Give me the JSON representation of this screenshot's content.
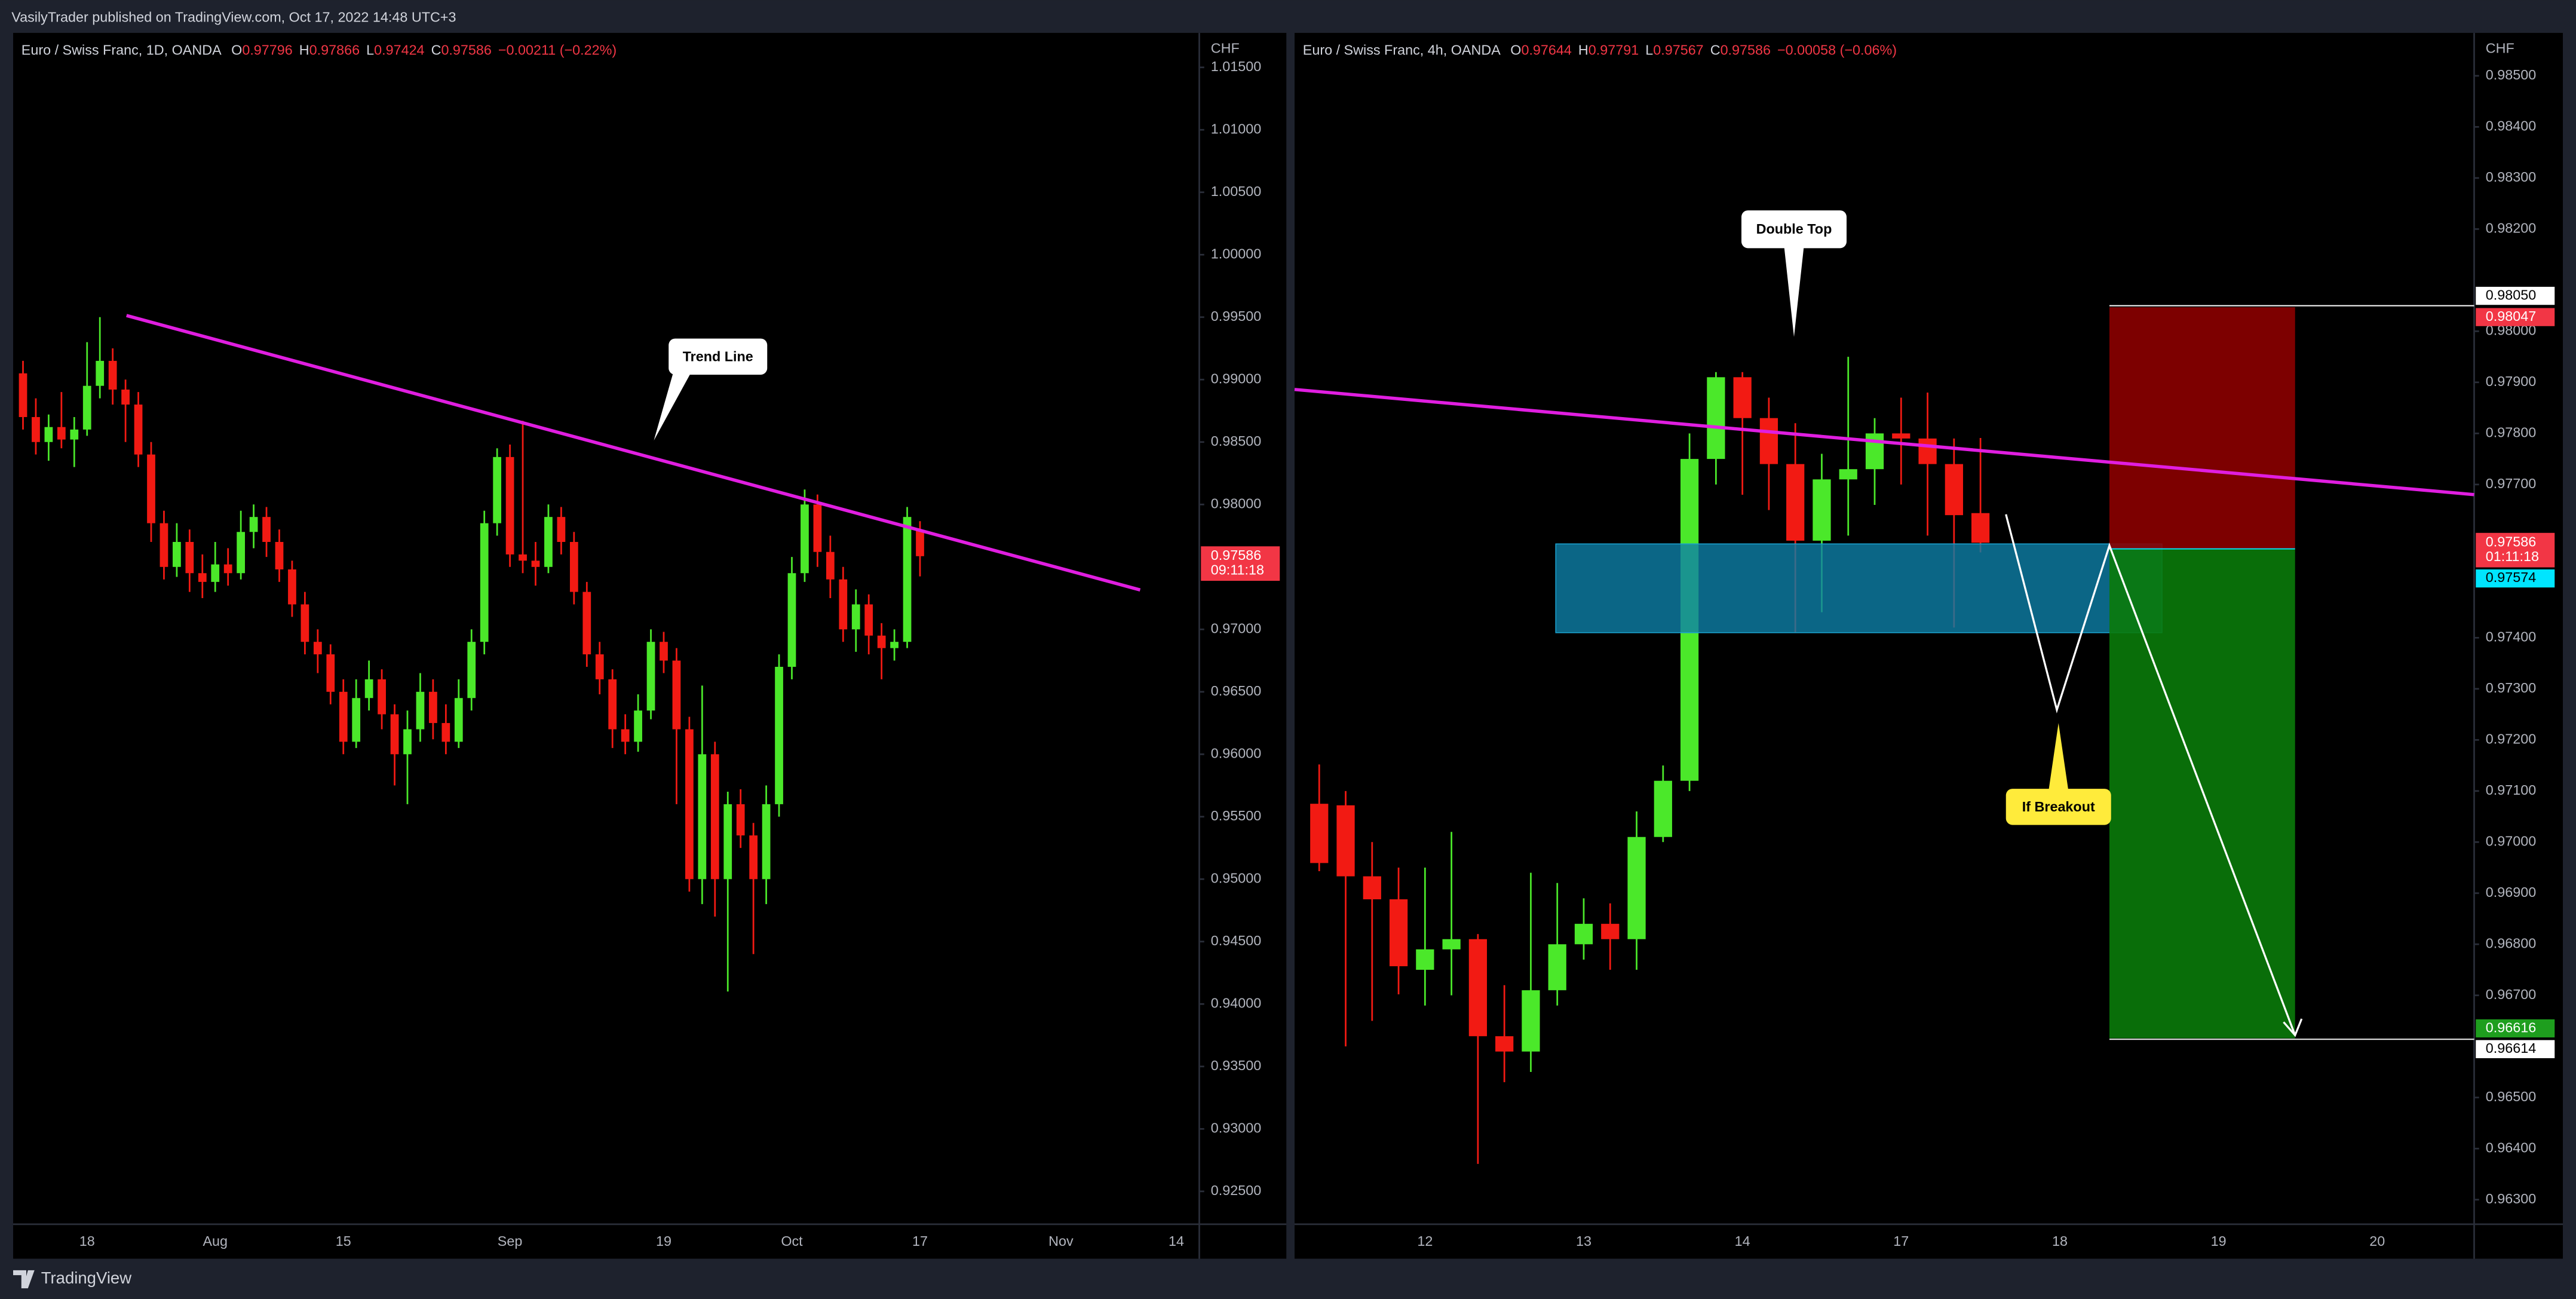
{
  "header": {
    "text": "VasilyTrader published on TradingView.com, Oct 17, 2022 14:48 UTC+3"
  },
  "footer": {
    "brand": "TradingView"
  },
  "chart_data": [
    {
      "type": "candlestick",
      "title": "Euro / Swiss Franc, 1D, OANDA",
      "ohlc_letters": [
        "O",
        "H",
        "L",
        "C"
      ],
      "change": "−0.00211 (−0.22%)",
      "currency": "CHF",
      "countdown": "09:11:18",
      "up_color": "#4be82a",
      "down_color": "#f21a13",
      "annotations": [
        {
          "text": "Trend Line"
        }
      ],
      "categories": [
        null,
        null,
        null,
        null,
        null,
        "18",
        null,
        null,
        null,
        null,
        null,
        null,
        null,
        null,
        null,
        "Aug",
        null,
        null,
        null,
        null,
        null,
        null,
        null,
        null,
        null,
        "15",
        null,
        null,
        null,
        null,
        null,
        null,
        null,
        null,
        null,
        null,
        null,
        null,
        "Sep",
        null,
        null,
        null,
        null,
        null,
        null,
        null,
        null,
        null,
        null,
        null,
        "19",
        null,
        null,
        null,
        null,
        null,
        null,
        null,
        null,
        null,
        "Oct",
        null,
        null,
        null,
        null,
        null,
        null,
        null,
        null,
        null,
        "17",
        null,
        null,
        null,
        null,
        null,
        null,
        null,
        null,
        null,
        null,
        "Nov",
        null,
        null,
        null,
        null,
        null,
        null,
        null,
        null,
        "14",
        null
      ],
      "open": [
        0.9905,
        0.987,
        0.985,
        0.9862,
        0.9852,
        0.986,
        0.9895,
        0.9915,
        0.9892,
        0.988,
        0.984,
        0.9785,
        0.975,
        0.977,
        0.9745,
        0.9738,
        0.9752,
        0.9745,
        0.9778,
        0.979,
        0.977,
        0.9748,
        0.972,
        0.969,
        0.968,
        0.965,
        0.961,
        0.9645,
        0.966,
        0.9632,
        0.96,
        0.962,
        0.965,
        0.9625,
        0.961,
        0.9645,
        0.969,
        0.9785,
        0.9838,
        0.976,
        0.9755,
        0.975,
        0.979,
        0.977,
        0.973,
        0.968,
        0.966,
        0.962,
        0.961,
        0.9635,
        0.969,
        0.9675,
        0.962,
        0.95,
        0.96,
        0.95,
        0.956,
        0.9535,
        0.95,
        0.956,
        0.967,
        0.9745,
        0.98,
        0.9762,
        0.974,
        0.97,
        0.972,
        0.9695,
        0.9685,
        0.969,
        0.97796,
        null,
        null,
        null,
        null,
        null,
        null,
        null,
        null,
        null,
        null,
        null,
        null,
        null,
        null,
        null,
        null,
        null,
        null,
        null,
        null,
        null
      ],
      "high": [
        0.9915,
        0.9885,
        0.9872,
        0.989,
        0.987,
        0.993,
        0.995,
        0.9925,
        0.99,
        0.989,
        0.985,
        0.9795,
        0.9785,
        0.978,
        0.976,
        0.977,
        0.9765,
        0.9795,
        0.98,
        0.9798,
        0.978,
        0.9755,
        0.973,
        0.97,
        0.9688,
        0.966,
        0.966,
        0.9675,
        0.9668,
        0.964,
        0.9635,
        0.9665,
        0.966,
        0.964,
        0.966,
        0.97,
        0.9795,
        0.9845,
        0.9848,
        0.9867,
        0.977,
        0.98,
        0.9798,
        0.9778,
        0.9738,
        0.969,
        0.9668,
        0.9632,
        0.9648,
        0.97,
        0.9698,
        0.9685,
        0.963,
        0.9655,
        0.961,
        0.957,
        0.9572,
        0.9545,
        0.9575,
        0.968,
        0.9758,
        0.9812,
        0.9808,
        0.9775,
        0.975,
        0.9732,
        0.9728,
        0.9705,
        0.97,
        0.9798,
        0.97866,
        null,
        null,
        null,
        null,
        null,
        null,
        null,
        null,
        null,
        null,
        null,
        null,
        null,
        null,
        null,
        null,
        null,
        null,
        null,
        null,
        null
      ],
      "low": [
        0.986,
        0.984,
        0.9835,
        0.9845,
        0.983,
        0.9855,
        0.9885,
        0.988,
        0.985,
        0.983,
        0.977,
        0.974,
        0.9742,
        0.973,
        0.9725,
        0.973,
        0.9735,
        0.974,
        0.9765,
        0.9758,
        0.9738,
        0.971,
        0.968,
        0.9665,
        0.964,
        0.96,
        0.9605,
        0.9635,
        0.962,
        0.9575,
        0.956,
        0.961,
        0.9612,
        0.96,
        0.9605,
        0.9635,
        0.968,
        0.9775,
        0.975,
        0.9745,
        0.9735,
        0.9745,
        0.976,
        0.972,
        0.967,
        0.9648,
        0.9605,
        0.96,
        0.9602,
        0.9628,
        0.9665,
        0.956,
        0.949,
        0.948,
        0.947,
        0.941,
        0.9525,
        0.944,
        0.948,
        0.955,
        0.966,
        0.9738,
        0.975,
        0.9725,
        0.969,
        0.9682,
        0.968,
        0.966,
        0.9675,
        0.9685,
        0.97424,
        null,
        null,
        null,
        null,
        null,
        null,
        null,
        null,
        null,
        null,
        null,
        null,
        null,
        null,
        null,
        null,
        null,
        null,
        null,
        null,
        null
      ],
      "close": [
        0.987,
        0.985,
        0.9862,
        0.9852,
        0.986,
        0.9895,
        0.9915,
        0.9892,
        0.988,
        0.984,
        0.9785,
        0.975,
        0.977,
        0.9745,
        0.9738,
        0.9752,
        0.9745,
        0.9778,
        0.979,
        0.977,
        0.9748,
        0.972,
        0.969,
        0.968,
        0.965,
        0.961,
        0.9645,
        0.966,
        0.9632,
        0.96,
        0.962,
        0.965,
        0.9625,
        0.961,
        0.9645,
        0.969,
        0.9785,
        0.9838,
        0.976,
        0.9755,
        0.975,
        0.979,
        0.977,
        0.973,
        0.968,
        0.966,
        0.962,
        0.961,
        0.9635,
        0.969,
        0.9675,
        0.962,
        0.95,
        0.96,
        0.95,
        0.956,
        0.9535,
        0.95,
        0.956,
        0.967,
        0.9745,
        0.98,
        0.9762,
        0.974,
        0.97,
        0.972,
        0.9695,
        0.9685,
        0.969,
        0.979,
        0.97586,
        null,
        null,
        null,
        null,
        null,
        null,
        null,
        null,
        null,
        null,
        null,
        null,
        null,
        null,
        null,
        null,
        null,
        null,
        null,
        null,
        null
      ],
      "ylim": [
        0.92237,
        1.01776
      ],
      "yticks": [
        {
          "value": 1.015,
          "label": "1.01500"
        },
        {
          "value": 1.01,
          "label": "1.01000"
        },
        {
          "value": 1.005,
          "label": "1.00500"
        },
        {
          "value": 1,
          "label": "1.00000"
        },
        {
          "value": 0.995,
          "label": "0.99500"
        },
        {
          "value": 0.99,
          "label": "0.99000"
        },
        {
          "value": 0.985,
          "label": "0.98500"
        },
        {
          "value": 0.98,
          "label": "0.98000"
        },
        {
          "value": 0.97,
          "label": "0.97000"
        },
        {
          "value": 0.965,
          "label": "0.96500"
        },
        {
          "value": 0.96,
          "label": "0.96000"
        },
        {
          "value": 0.955,
          "label": "0.95500"
        },
        {
          "value": 0.95,
          "label": "0.95000"
        },
        {
          "value": 0.945,
          "label": "0.94500"
        },
        {
          "value": 0.94,
          "label": "0.94000"
        },
        {
          "value": 0.935,
          "label": "0.93500"
        },
        {
          "value": 0.93,
          "label": "0.93000"
        },
        {
          "value": 0.925,
          "label": "0.92500"
        }
      ]
    },
    {
      "type": "candlestick",
      "title": "Euro / Swiss Franc, 4h, OANDA",
      "ohlc_letters": [
        "O",
        "H",
        "L",
        "C"
      ],
      "change": "−0.00058 (−0.06%)",
      "currency": "CHF",
      "countdown": "01:11:18",
      "up_color": "#4be82a",
      "down_color": "#f21a13",
      "annotations": [
        {
          "text": "Double Top"
        },
        {
          "text": "If Breakout"
        }
      ],
      "price_labels": [
        {
          "value": 0.9805,
          "label": "0.98050",
          "color": "#ffffff"
        },
        {
          "value": 0.98047,
          "label": "0.98047",
          "color": "#f23645"
        },
        {
          "value": 0.97574,
          "label": "0.97574",
          "color": "#00e5ff"
        },
        {
          "value": 0.96616,
          "label": "0.96616",
          "color": "#1e9e1e"
        },
        {
          "value": 0.96614,
          "label": "0.96614",
          "color": "#ffffff"
        }
      ],
      "categories": [
        null,
        null,
        null,
        null,
        "12",
        null,
        null,
        null,
        null,
        null,
        "13",
        null,
        null,
        null,
        null,
        null,
        "14",
        null,
        null,
        null,
        null,
        null,
        "17",
        null,
        null,
        null,
        null,
        null,
        "18",
        null,
        null,
        null,
        null,
        null,
        "19",
        null,
        null,
        null,
        null,
        null,
        "20",
        null,
        null,
        null
      ],
      "open": [
        0.97075,
        0.97072,
        0.96933,
        0.96888,
        0.9675,
        0.9679,
        0.9681,
        0.9662,
        0.9659,
        0.9671,
        0.968,
        0.9684,
        0.9681,
        0.9701,
        0.9712,
        0.9775,
        0.9791,
        0.9783,
        0.9774,
        0.9759,
        0.9771,
        0.9773,
        0.978,
        0.9779,
        0.9774,
        0.97644,
        null,
        null,
        null,
        null,
        null,
        null,
        null,
        null,
        null,
        null,
        null,
        null,
        null,
        null,
        null,
        null,
        null,
        null
      ],
      "high": [
        0.97152,
        0.971,
        0.97,
        0.9695,
        0.9695,
        0.9702,
        0.9682,
        0.9672,
        0.9694,
        0.9692,
        0.9689,
        0.9688,
        0.9706,
        0.9715,
        0.978,
        0.9792,
        0.9792,
        0.9787,
        0.9782,
        0.9776,
        0.9795,
        0.9783,
        0.9787,
        0.9788,
        0.9779,
        0.97791,
        null,
        null,
        null,
        null,
        null,
        null,
        null,
        null,
        null,
        null,
        null,
        null,
        null,
        null,
        null,
        null,
        null,
        null
      ],
      "low": [
        0.96943,
        0.966,
        0.9665,
        0.96702,
        0.9668,
        0.967,
        0.9637,
        0.9653,
        0.9655,
        0.9668,
        0.9677,
        0.9675,
        0.9675,
        0.97,
        0.971,
        0.977,
        0.9768,
        0.9765,
        0.9741,
        0.9745,
        0.976,
        0.9766,
        0.977,
        0.976,
        0.9742,
        0.97567,
        null,
        null,
        null,
        null,
        null,
        null,
        null,
        null,
        null,
        null,
        null,
        null,
        null,
        null,
        null,
        null,
        null,
        null
      ],
      "close": [
        0.96959,
        0.96933,
        0.96888,
        0.96757,
        0.9679,
        0.9681,
        0.9662,
        0.9659,
        0.9671,
        0.968,
        0.9684,
        0.9681,
        0.9701,
        0.9712,
        0.9775,
        0.9791,
        0.9783,
        0.9774,
        0.9759,
        0.9771,
        0.9773,
        0.978,
        0.9779,
        0.9774,
        0.9764,
        0.97586,
        null,
        null,
        null,
        null,
        null,
        null,
        null,
        null,
        null,
        null,
        null,
        null,
        null,
        null,
        null,
        null,
        null,
        null
      ],
      "ylim": [
        0.96252,
        0.98584
      ],
      "yticks": [
        {
          "value": 0.985,
          "label": "0.98500"
        },
        {
          "value": 0.984,
          "label": "0.98400"
        },
        {
          "value": 0.983,
          "label": "0.98300"
        },
        {
          "value": 0.982,
          "label": "0.98200"
        },
        {
          "value": 0.98,
          "label": "0.98000"
        },
        {
          "value": 0.979,
          "label": "0.97900"
        },
        {
          "value": 0.978,
          "label": "0.97800"
        },
        {
          "value": 0.977,
          "label": "0.97700"
        },
        {
          "value": 0.974,
          "label": "0.97400"
        },
        {
          "value": 0.973,
          "label": "0.97300"
        },
        {
          "value": 0.972,
          "label": "0.97200"
        },
        {
          "value": 0.971,
          "label": "0.97100"
        },
        {
          "value": 0.97,
          "label": "0.97000"
        },
        {
          "value": 0.969,
          "label": "0.96900"
        },
        {
          "value": 0.968,
          "label": "0.96800"
        },
        {
          "value": 0.967,
          "label": "0.96700"
        },
        {
          "value": 0.965,
          "label": "0.96500"
        },
        {
          "value": 0.964,
          "label": "0.96400"
        },
        {
          "value": 0.963,
          "label": "0.96300"
        }
      ]
    }
  ]
}
